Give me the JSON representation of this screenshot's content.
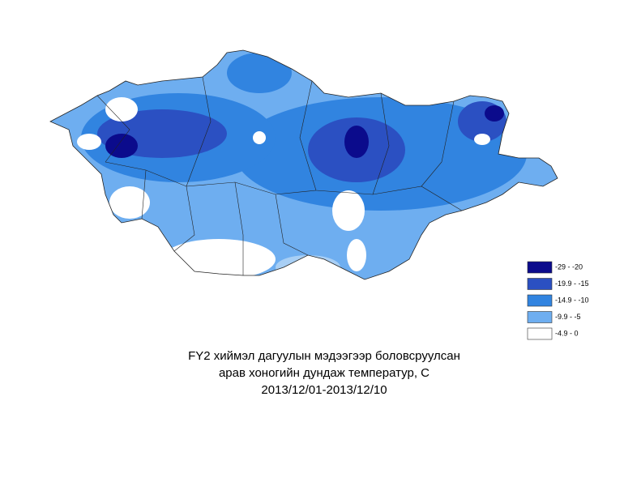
{
  "map": {
    "legend": [
      {
        "label": "-29 - -20",
        "color": "#0b0b8c"
      },
      {
        "label": "-19.9 - -15",
        "color": "#2b50c2"
      },
      {
        "label": "-14.9 - -10",
        "color": "#3184e0"
      },
      {
        "label": "-9.9 - -5",
        "color": "#6eaef0"
      },
      {
        "label": "-4.9 - 0",
        "color": "#ffffff"
      }
    ],
    "caption": [
      "FY2 хиймэл дагуулын мэдээгээр боловсруулсан",
      "арав хоногийн дундаж температур, С",
      "2013/12/01-2013/12/10"
    ]
  }
}
